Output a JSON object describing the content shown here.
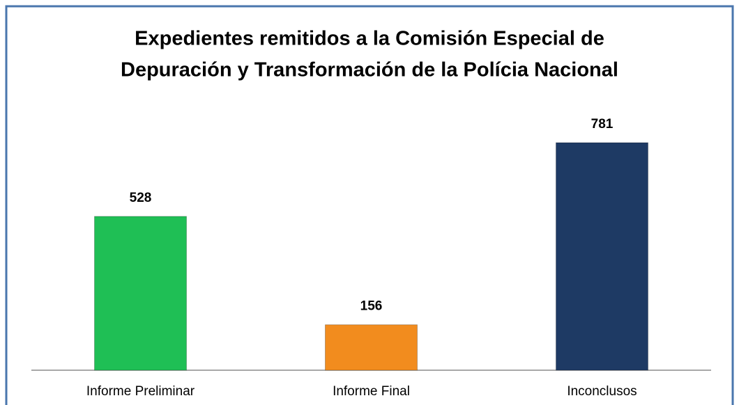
{
  "chart_data": {
    "type": "bar",
    "title": [
      "Expedientes remitidos a la Comisión Especial de",
      "Depuración y Transformación de la Polícia Nacional"
    ],
    "categories": [
      "Informe Preliminar",
      "Informe Final",
      "Inconclusos"
    ],
    "values": [
      528,
      156,
      781
    ],
    "colors": [
      "#1fbf55",
      "#f28c1e",
      "#1e3a64"
    ]
  }
}
